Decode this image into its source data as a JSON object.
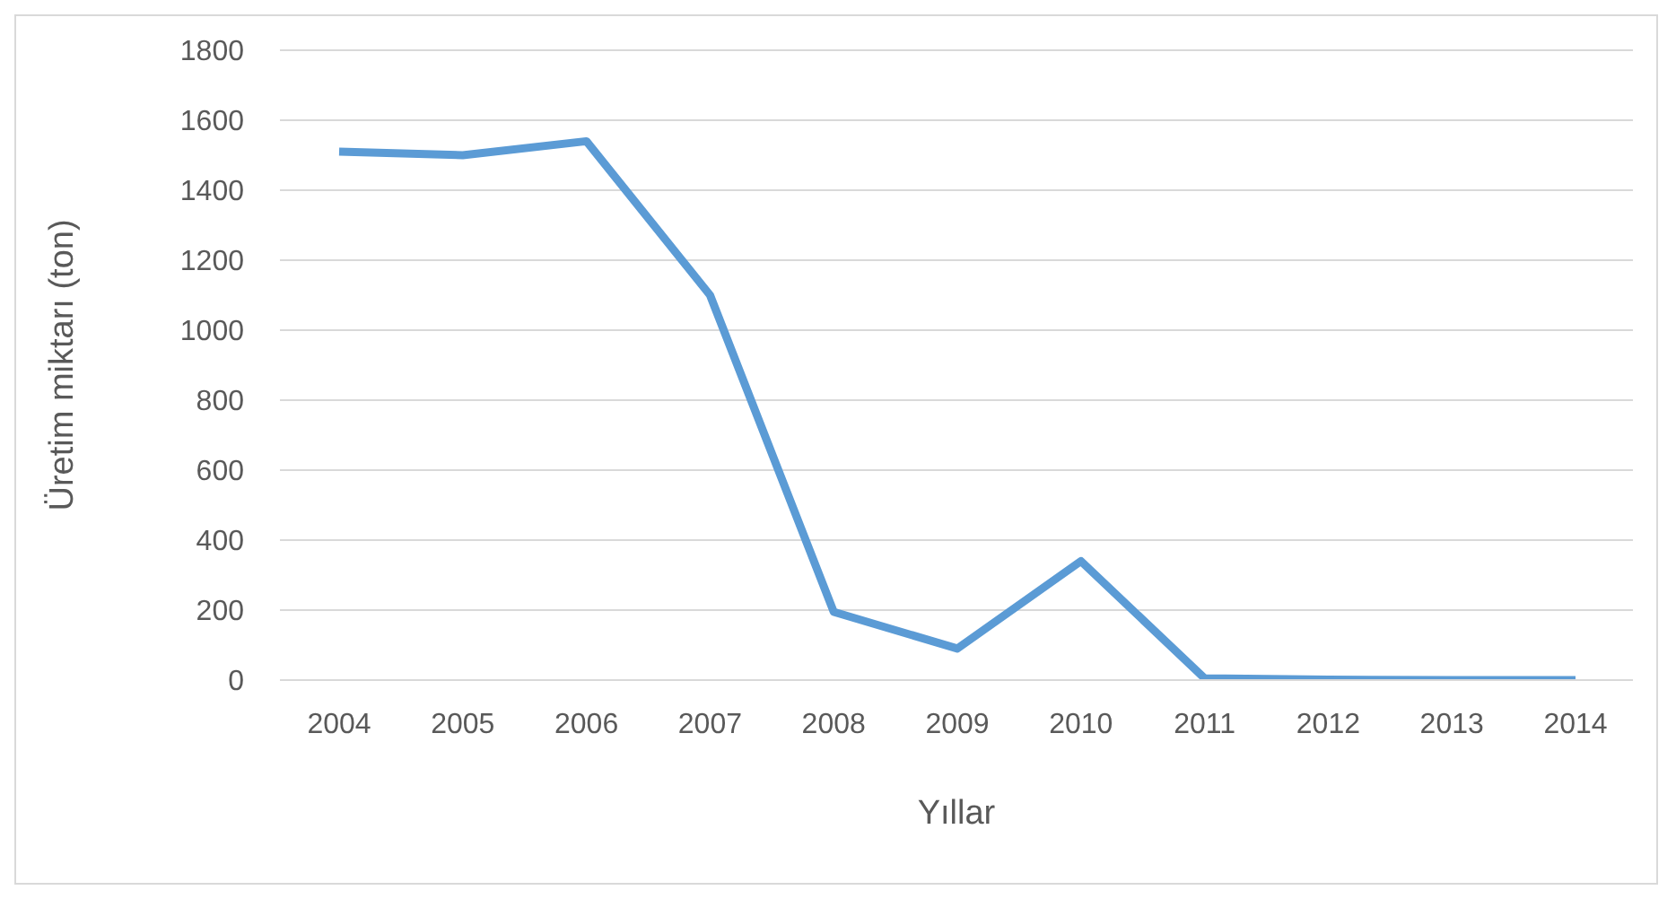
{
  "chart_data": {
    "type": "line",
    "xlabel": "Yıllar",
    "ylabel": "Üretim miktarı (ton)",
    "categories": [
      "2004",
      "2005",
      "2006",
      "2007",
      "2008",
      "2009",
      "2010",
      "2011",
      "2012",
      "2013",
      "2014"
    ],
    "series": [
      {
        "color": "#5b9bd5",
        "values": [
          1510,
          1500,
          1540,
          1100,
          195,
          90,
          340,
          5,
          1,
          0,
          0
        ]
      }
    ],
    "ylim": [
      0,
      1800
    ],
    "yticks": [
      0,
      200,
      400,
      600,
      800,
      1000,
      1200,
      1400,
      1600,
      1800
    ],
    "grid": "y",
    "marker": "none",
    "line_style": "solid"
  }
}
